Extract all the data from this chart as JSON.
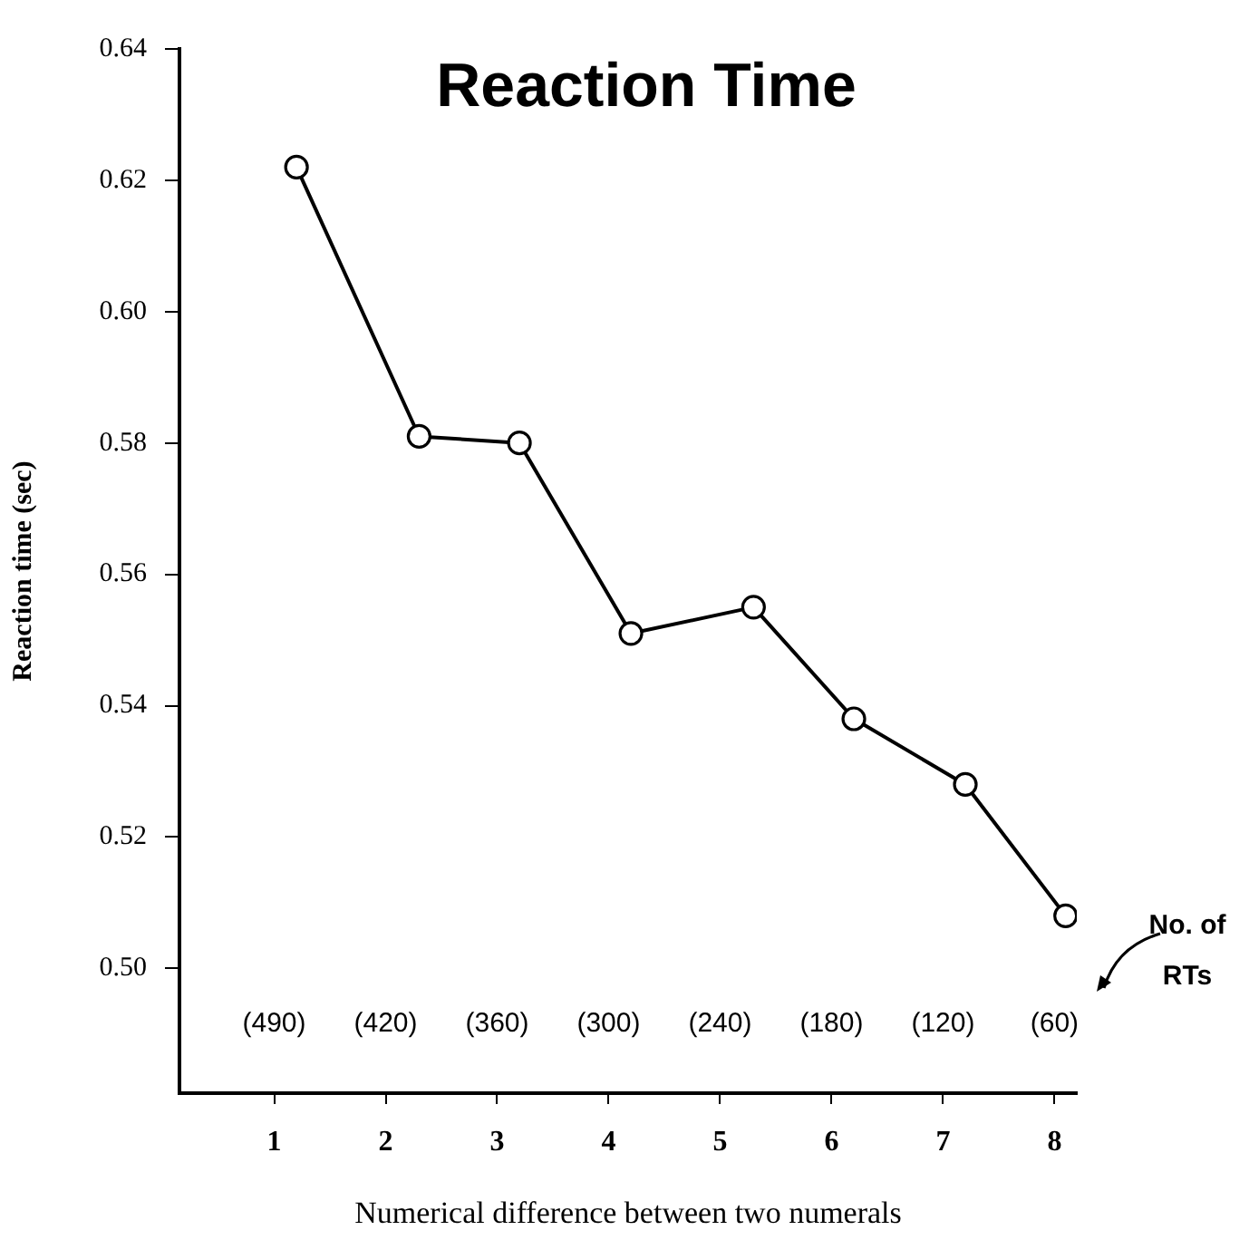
{
  "chart_data": {
    "type": "line",
    "title": "Reaction Time",
    "xlabel": "Numerical difference between two numerals",
    "ylabel": "Reaction time (sec)",
    "x": [
      1.2,
      2.3,
      3.2,
      4.2,
      5.3,
      6.2,
      7.2,
      8.1
    ],
    "series": [
      {
        "color": "#000000",
        "values": [
          0.622,
          0.581,
          0.58,
          0.551,
          0.555,
          0.538,
          0.528,
          0.508
        ]
      }
    ],
    "xlim": [
      0.15,
      8.2
    ],
    "xticks": [
      1,
      2,
      3,
      4,
      5,
      6,
      7,
      8
    ],
    "ylim": [
      0.481,
      0.64
    ],
    "yticks": [
      {
        "value": 0.5,
        "label": "0.50"
      },
      0.52,
      0.54,
      0.56,
      0.58,
      {
        "value": 0.6,
        "label": "0.60"
      },
      0.62,
      0.64
    ],
    "grid": false,
    "legend": false,
    "marker": "circle",
    "line_style": "solid",
    "annotations": [
      "(490)",
      "(420)",
      "(360)",
      "(300)",
      "(240)",
      "(180)",
      "(120)",
      "(60)",
      "No. of RTs"
    ]
  }
}
